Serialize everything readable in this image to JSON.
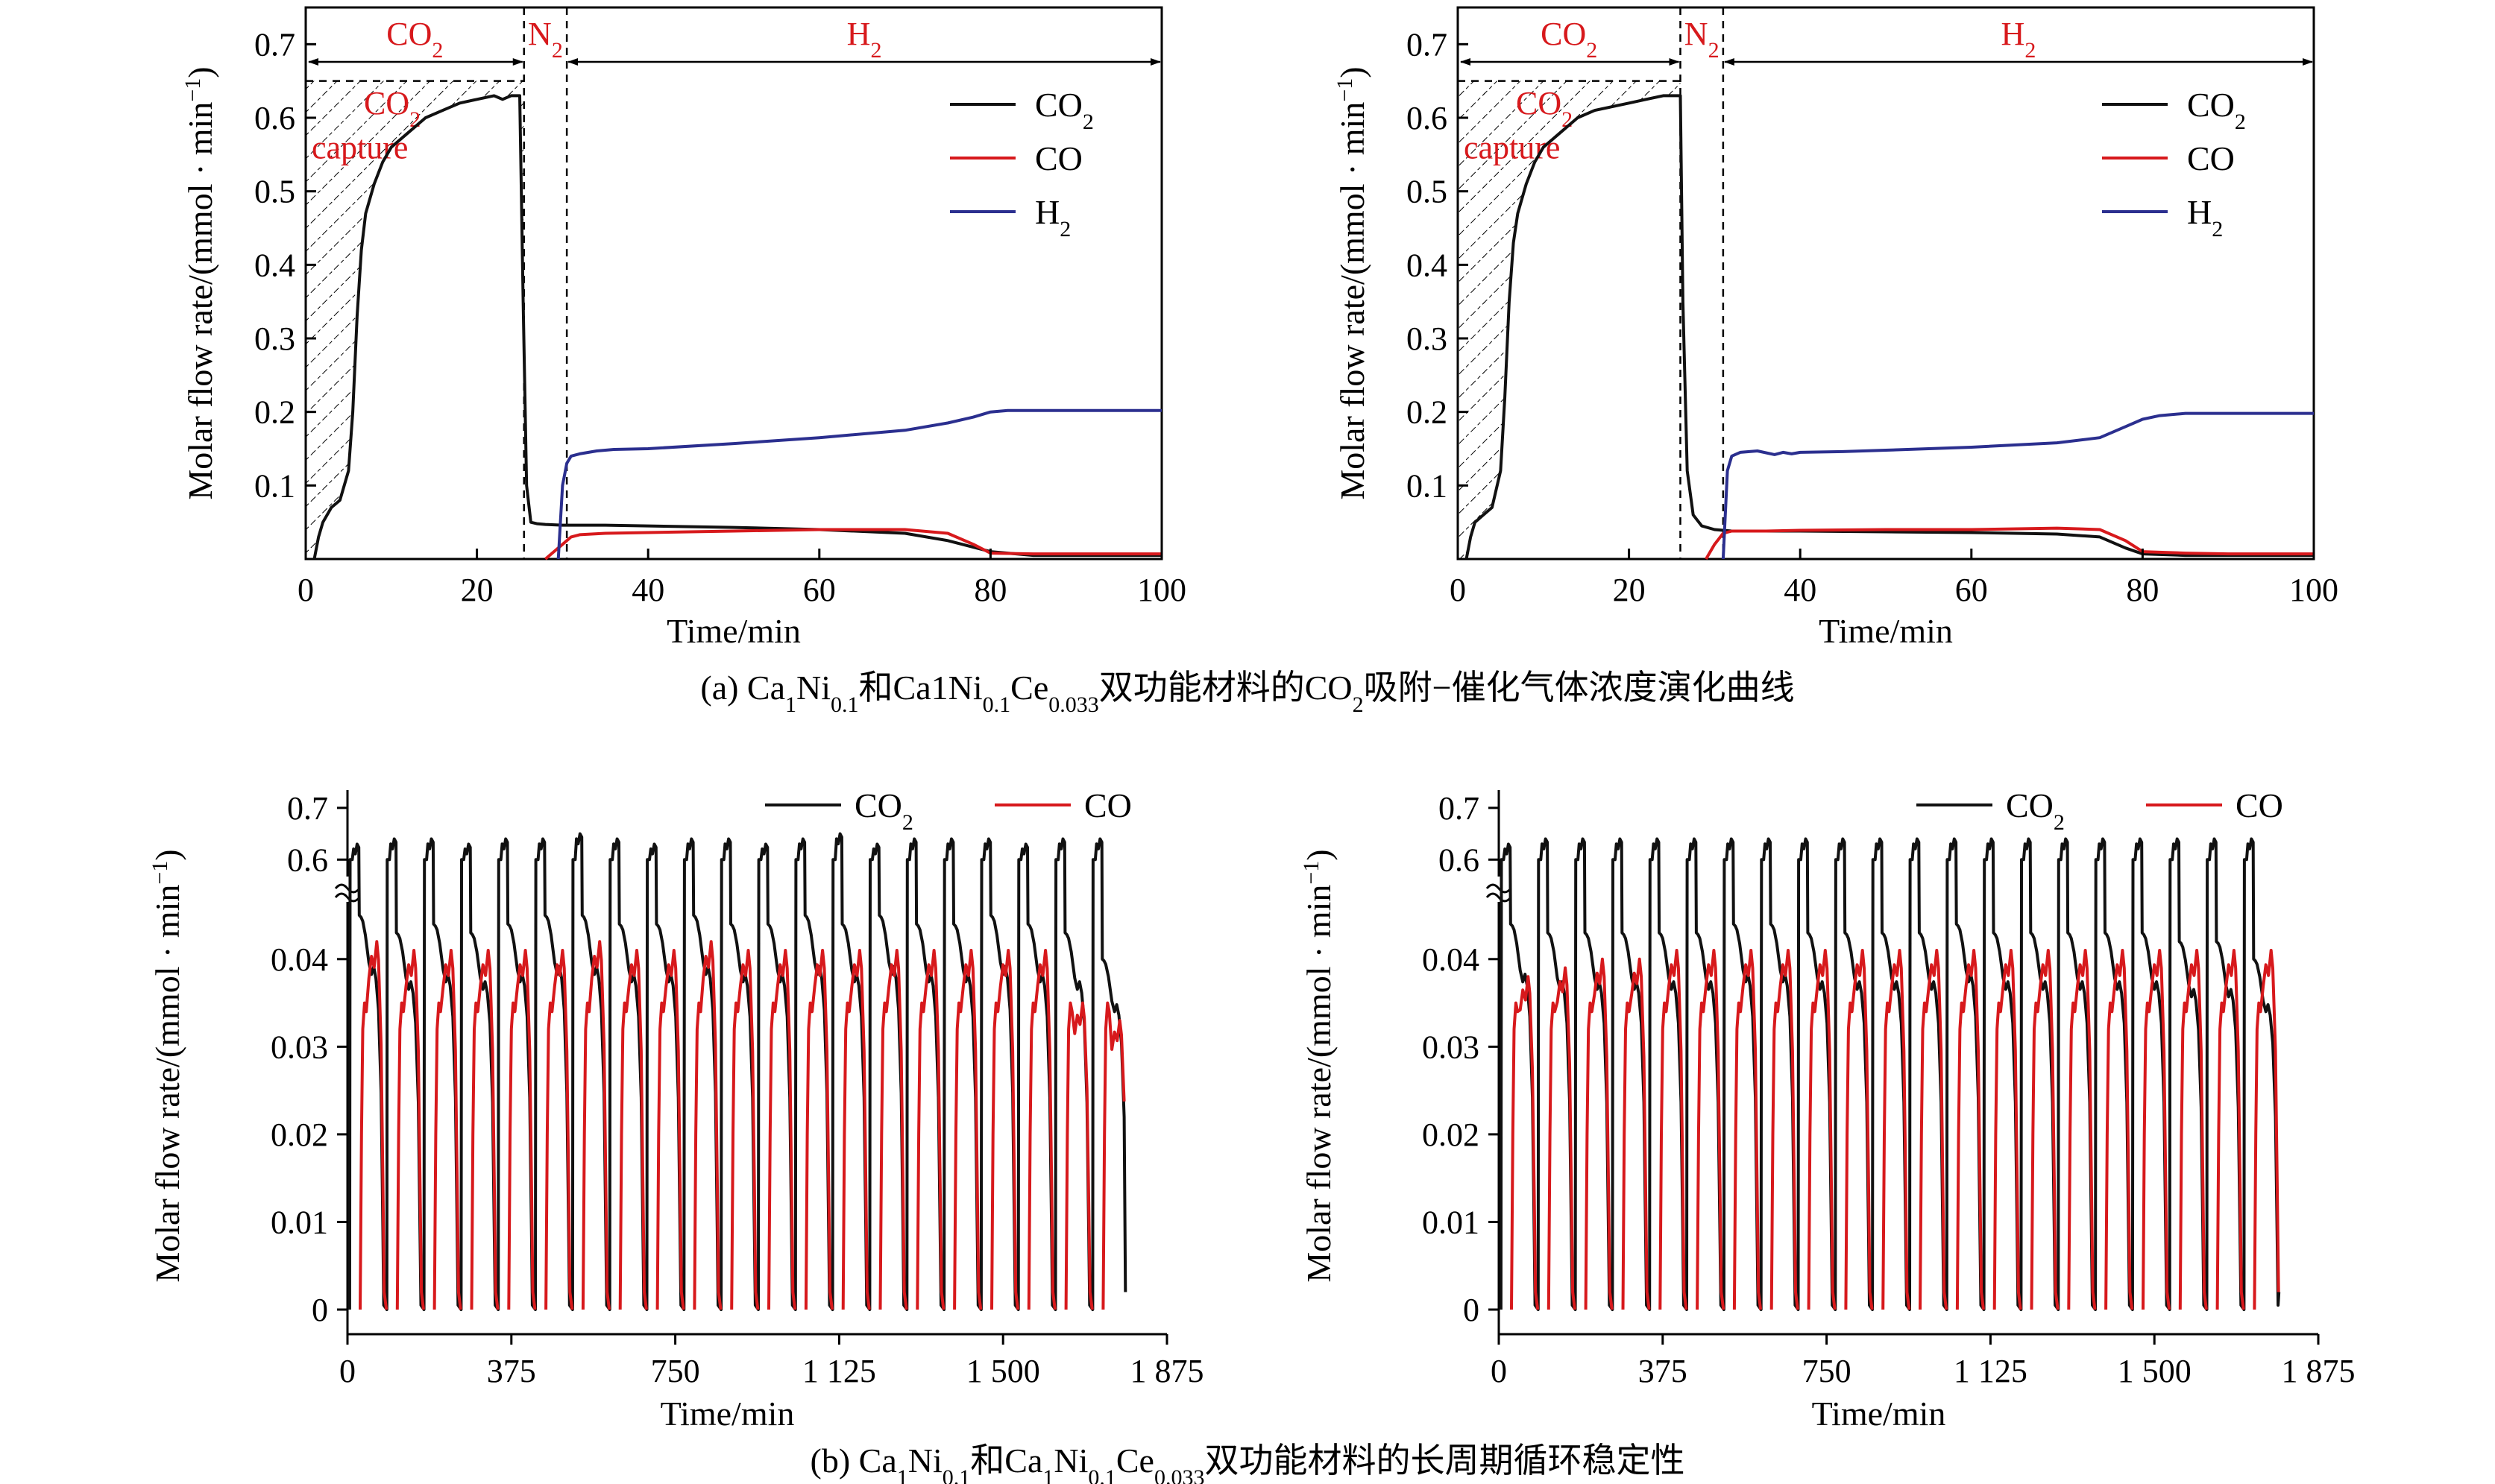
{
  "colors": {
    "co2": "#111111",
    "co": "#d7191c",
    "h2": "#2b2f8f",
    "phase_text": "#d7191c"
  },
  "captions": {
    "a": "(a) Ca1Ni0.1和Ca1Ni0.1Ce0.033双功能材料的CO2吸附−催化气体浓度演化曲线",
    "b": "(b) Ca1Ni0.1和Ca1Ni0.1Ce0.033双功能材料的长周期循环稳定性"
  },
  "chart_data": [
    {
      "id": "a-left",
      "type": "line",
      "xlabel": "Time/min",
      "ylabel": "Molar flow rate/(mmol · min−1)",
      "xlim": [
        0,
        100
      ],
      "ylim": [
        0,
        0.75
      ],
      "xticks": [
        "0",
        "20",
        "40",
        "60",
        "80",
        "100"
      ],
      "yticks": [
        "0.1",
        "0.2",
        "0.3",
        "0.4",
        "0.5",
        "0.6",
        "0.7"
      ],
      "phases": [
        {
          "label": "CO2",
          "from": 0,
          "to": 25.5
        },
        {
          "label": "N2",
          "from": 25.5,
          "to": 30.5
        },
        {
          "label": "H2",
          "from": 30.5,
          "to": 100
        }
      ],
      "annotation": {
        "label": "CO2 capture",
        "line1": "CO2",
        "line2": "capture",
        "level": 0.65
      },
      "legend": [
        "CO2",
        "CO",
        "H2"
      ],
      "series": [
        {
          "name": "CO2",
          "x": [
            1,
            1.5,
            2,
            3,
            4,
            5,
            5.5,
            6,
            6.5,
            7,
            8,
            9,
            10,
            12,
            14,
            16,
            18,
            20,
            22,
            23,
            24,
            25,
            25.4,
            25.8,
            26.3,
            27,
            28,
            30,
            32,
            35,
            40,
            50,
            60,
            70,
            75,
            80,
            85,
            90,
            95,
            100
          ],
          "y": [
            0,
            0.03,
            0.05,
            0.07,
            0.08,
            0.12,
            0.2,
            0.33,
            0.42,
            0.47,
            0.51,
            0.54,
            0.56,
            0.58,
            0.6,
            0.61,
            0.62,
            0.625,
            0.63,
            0.625,
            0.63,
            0.63,
            0.35,
            0.1,
            0.05,
            0.048,
            0.047,
            0.046,
            0.046,
            0.046,
            0.045,
            0.043,
            0.04,
            0.035,
            0.025,
            0.01,
            0.005,
            0.005,
            0.005,
            0.005
          ]
        },
        {
          "name": "CO",
          "x": [
            28,
            29,
            30,
            31,
            32,
            35,
            40,
            50,
            60,
            70,
            75,
            78,
            80,
            85,
            90,
            95,
            100
          ],
          "y": [
            0,
            0.01,
            0.02,
            0.03,
            0.033,
            0.035,
            0.036,
            0.038,
            0.04,
            0.04,
            0.035,
            0.02,
            0.008,
            0.007,
            0.007,
            0.007,
            0.007
          ]
        },
        {
          "name": "H2",
          "x": [
            29.5,
            30,
            30.5,
            31,
            32,
            34,
            36,
            40,
            50,
            60,
            70,
            75,
            78,
            80,
            82,
            85,
            90,
            95,
            100
          ],
          "y": [
            0,
            0.1,
            0.13,
            0.14,
            0.143,
            0.147,
            0.149,
            0.15,
            0.157,
            0.165,
            0.175,
            0.185,
            0.193,
            0.2,
            0.202,
            0.202,
            0.202,
            0.202,
            0.202
          ]
        }
      ]
    },
    {
      "id": "a-right",
      "type": "line",
      "xlabel": "Time/min",
      "ylabel": "Molar flow rate/(mmol · min−1)",
      "xlim": [
        0,
        100
      ],
      "ylim": [
        0,
        0.75
      ],
      "xticks": [
        "0",
        "20",
        "40",
        "60",
        "80",
        "100"
      ],
      "yticks": [
        "0.1",
        "0.2",
        "0.3",
        "0.4",
        "0.5",
        "0.6",
        "0.7"
      ],
      "phases": [
        {
          "label": "CO2",
          "from": 0,
          "to": 26
        },
        {
          "label": "N2",
          "from": 26,
          "to": 31
        },
        {
          "label": "H2",
          "from": 31,
          "to": 100
        }
      ],
      "annotation": {
        "label": "CO2 capture",
        "line1": "CO2",
        "line2": "capture",
        "level": 0.65
      },
      "legend": [
        "CO2",
        "CO",
        "H2"
      ],
      "series": [
        {
          "name": "CO2",
          "x": [
            1,
            1.5,
            2,
            3,
            4,
            5,
            5.5,
            6,
            6.5,
            7,
            8,
            9,
            10,
            12,
            14,
            16,
            18,
            20,
            22,
            24,
            25,
            26,
            26.3,
            26.8,
            27.5,
            28.5,
            30,
            32,
            35,
            40,
            50,
            60,
            70,
            75,
            78,
            80,
            85,
            90,
            100
          ],
          "y": [
            0,
            0.03,
            0.05,
            0.06,
            0.07,
            0.12,
            0.22,
            0.35,
            0.43,
            0.47,
            0.51,
            0.54,
            0.56,
            0.58,
            0.6,
            0.61,
            0.615,
            0.62,
            0.625,
            0.63,
            0.63,
            0.63,
            0.35,
            0.12,
            0.06,
            0.045,
            0.04,
            0.038,
            0.038,
            0.038,
            0.037,
            0.036,
            0.034,
            0.03,
            0.015,
            0.007,
            0.005,
            0.005,
            0.005
          ]
        },
        {
          "name": "CO",
          "x": [
            29,
            30,
            31,
            32,
            34,
            36,
            40,
            50,
            60,
            70,
            75,
            78,
            80,
            85,
            90,
            95,
            100
          ],
          "y": [
            0,
            0.02,
            0.035,
            0.038,
            0.038,
            0.038,
            0.039,
            0.04,
            0.04,
            0.042,
            0.04,
            0.025,
            0.01,
            0.008,
            0.007,
            0.007,
            0.007
          ]
        },
        {
          "name": "H2",
          "x": [
            31,
            31.5,
            32,
            33,
            35,
            37,
            38,
            39,
            40,
            45,
            50,
            60,
            70,
            75,
            78,
            80,
            82,
            85,
            90,
            95,
            100
          ],
          "y": [
            0,
            0.12,
            0.14,
            0.145,
            0.147,
            0.142,
            0.145,
            0.143,
            0.145,
            0.146,
            0.148,
            0.152,
            0.158,
            0.165,
            0.18,
            0.19,
            0.195,
            0.198,
            0.198,
            0.198,
            0.198
          ]
        }
      ]
    },
    {
      "id": "b-left",
      "type": "line",
      "xlabel": "Time/min",
      "ylabel": "Molar flow rate/(mmol · min−1)",
      "xlim": [
        0,
        1875
      ],
      "xticks": [
        "0",
        "375",
        "750",
        "1 125",
        "1 500",
        "1 875"
      ],
      "xtick_values": [
        0,
        375,
        750,
        1125,
        1500,
        1875
      ],
      "yticks_lower": [
        "0",
        "0.01",
        "0.02",
        "0.03",
        "0.04"
      ],
      "yticks_upper": [
        "0.6",
        "0.7"
      ],
      "axis_break": true,
      "legend": [
        "CO2",
        "CO"
      ],
      "cycles": {
        "count": 21,
        "start": 5,
        "period": 85,
        "last_end": 1780
      },
      "co2_peak_values": [
        0.63,
        0.64,
        0.64,
        0.63,
        0.64,
        0.64,
        0.65,
        0.64,
        0.63,
        0.64,
        0.64,
        0.63,
        0.64,
        0.65,
        0.63,
        0.64,
        0.64,
        0.64,
        0.63,
        0.64,
        0.64
      ],
      "co2_plateau_values": [
        0.045,
        0.043,
        0.044,
        0.043,
        0.044,
        0.045,
        0.045,
        0.044,
        0.044,
        0.045,
        0.044,
        0.044,
        0.045,
        0.044,
        0.045,
        0.044,
        0.044,
        0.045,
        0.044,
        0.043,
        0.04
      ],
      "co_peak_values": [
        0.042,
        0.041,
        0.041,
        0.041,
        0.041,
        0.041,
        0.042,
        0.041,
        0.041,
        0.042,
        0.041,
        0.041,
        0.041,
        0.041,
        0.041,
        0.041,
        0.041,
        0.041,
        0.041,
        0.035,
        0.033
      ]
    },
    {
      "id": "b-right",
      "type": "line",
      "xlabel": "Time/min",
      "ylabel": "Molar flow rate/(mmol · min−1)",
      "xlim": [
        0,
        1875
      ],
      "xticks": [
        "0",
        "375",
        "750",
        "1 125",
        "1 500",
        "1 875"
      ],
      "xtick_values": [
        0,
        375,
        750,
        1125,
        1500,
        1875
      ],
      "yticks_lower": [
        "0",
        "0.01",
        "0.02",
        "0.03",
        "0.04"
      ],
      "yticks_upper": [
        "0.6",
        "0.7"
      ],
      "axis_break": true,
      "legend": [
        "CO2",
        "CO"
      ],
      "cycles": {
        "count": 21,
        "start": 5,
        "period": 85,
        "last_end": 1785
      },
      "co2_peak_values": [
        0.63,
        0.64,
        0.64,
        0.64,
        0.64,
        0.64,
        0.64,
        0.64,
        0.64,
        0.64,
        0.64,
        0.64,
        0.64,
        0.64,
        0.64,
        0.64,
        0.64,
        0.64,
        0.64,
        0.64,
        0.64
      ],
      "co2_plateau_values": [
        0.044,
        0.043,
        0.043,
        0.043,
        0.043,
        0.043,
        0.044,
        0.044,
        0.043,
        0.043,
        0.043,
        0.043,
        0.044,
        0.043,
        0.043,
        0.043,
        0.043,
        0.043,
        0.042,
        0.042,
        0.04
      ],
      "co_peak_values": [
        0.038,
        0.039,
        0.04,
        0.04,
        0.041,
        0.041,
        0.041,
        0.041,
        0.041,
        0.041,
        0.041,
        0.041,
        0.041,
        0.041,
        0.041,
        0.041,
        0.041,
        0.041,
        0.041,
        0.041,
        0.041
      ]
    }
  ]
}
